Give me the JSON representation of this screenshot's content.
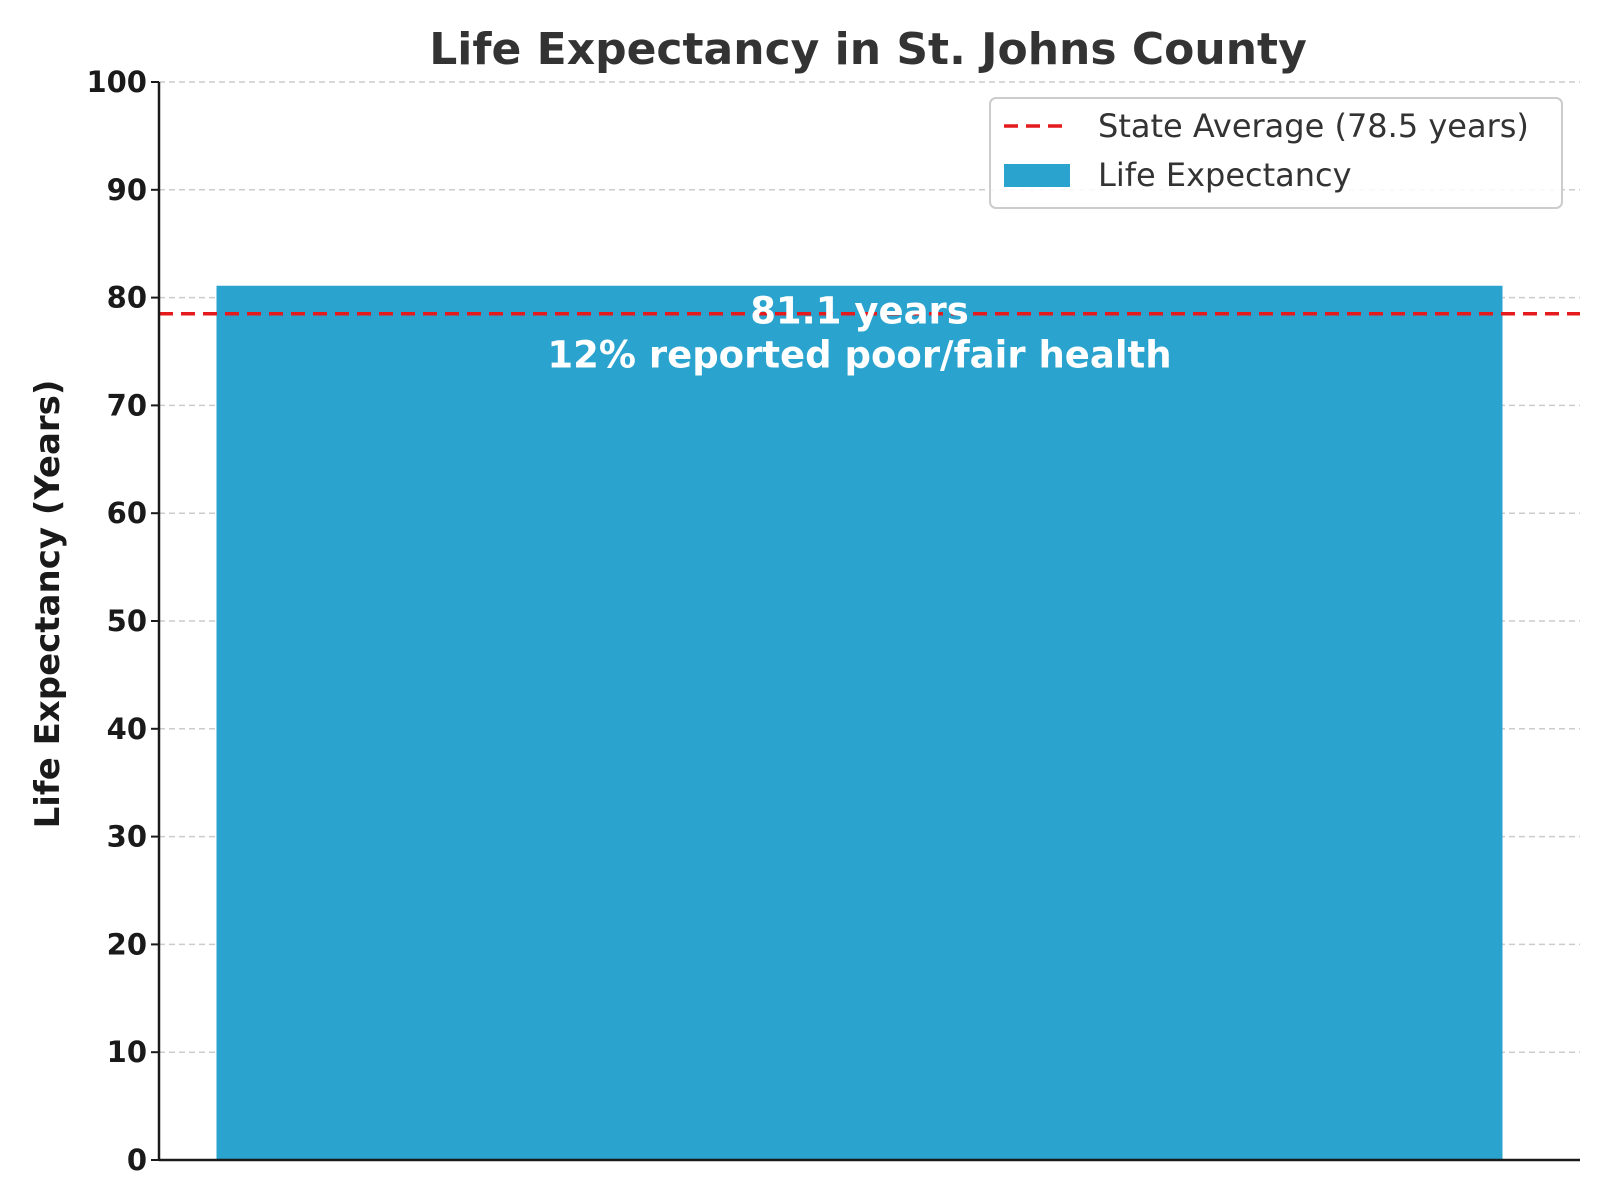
{
  "chart_data": {
    "type": "bar",
    "title": "Life Expectancy in St. Johns County",
    "xlabel": "",
    "ylabel": "Life Expectancy (Years)",
    "categories": [
      ""
    ],
    "series": [
      {
        "name": "Life Expectancy",
        "values": [
          81.1
        ],
        "color": "#2aa3ce"
      }
    ],
    "bar_annotation": [
      "81.1 years",
      "12% reported poor/fair health"
    ],
    "reference_lines": [
      {
        "name": "State Average (78.5 years)",
        "value": 78.5,
        "color": "#e41a1c",
        "style": "dashed"
      }
    ],
    "ylim": [
      0,
      100
    ],
    "yticks": [
      0,
      10,
      20,
      30,
      40,
      50,
      60,
      70,
      80,
      90,
      100
    ],
    "grid": "horizontal dashed",
    "legend_position": "top-right"
  }
}
